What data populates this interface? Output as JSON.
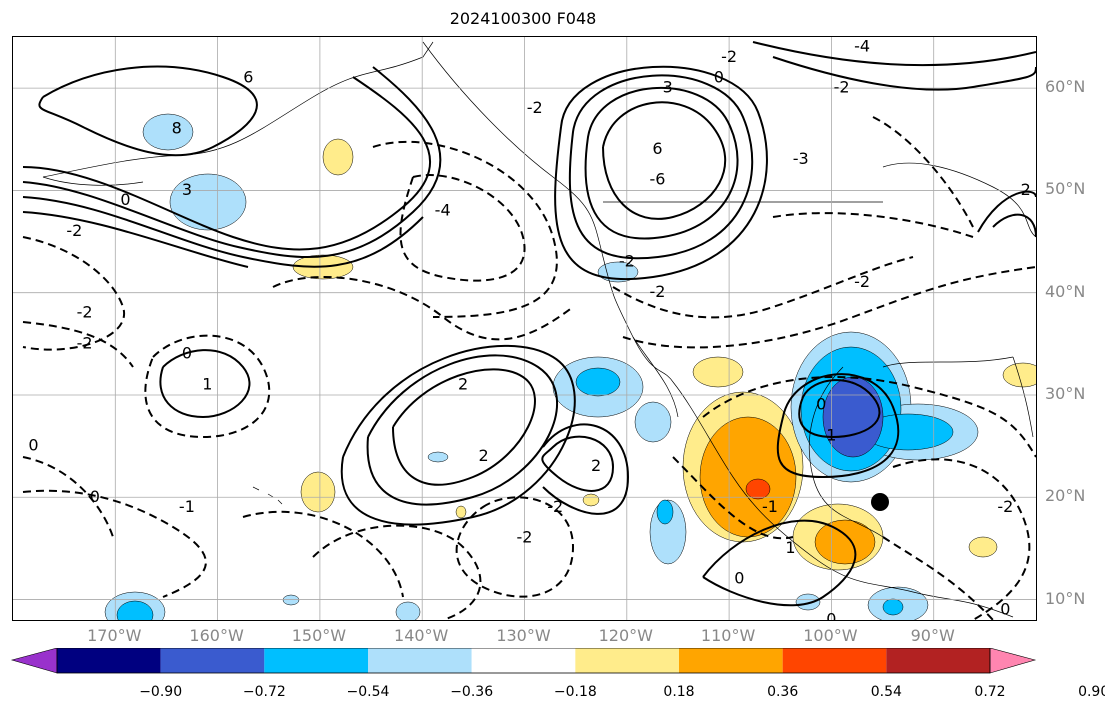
{
  "title": "2024100300 F048",
  "map": {
    "projection": "equirectangular",
    "lon_range": [
      -180,
      -80
    ],
    "lat_range": [
      8,
      65
    ],
    "grid": true,
    "lat_labels": [
      {
        "lat": 60,
        "text": "60°N"
      },
      {
        "lat": 50,
        "text": "50°N"
      },
      {
        "lat": 40,
        "text": "40°N"
      },
      {
        "lat": 30,
        "text": "30°N"
      },
      {
        "lat": 20,
        "text": "20°N"
      },
      {
        "lat": 10,
        "text": "10°N"
      }
    ],
    "lon_labels": [
      {
        "lon": -170,
        "text": "170°W"
      },
      {
        "lon": -160,
        "text": "160°W"
      },
      {
        "lon": -150,
        "text": "150°W"
      },
      {
        "lon": -140,
        "text": "140°W"
      },
      {
        "lon": -130,
        "text": "130°W"
      },
      {
        "lon": -120,
        "text": "120°W"
      },
      {
        "lon": -110,
        "text": "110°W"
      },
      {
        "lon": -100,
        "text": "100°W"
      },
      {
        "lon": -90,
        "text": "90°W"
      }
    ],
    "contour_labels": [
      {
        "text": "6",
        "lon": -157,
        "lat": 61
      },
      {
        "text": "8",
        "lon": -164,
        "lat": 56
      },
      {
        "text": "3",
        "lon": -163,
        "lat": 50
      },
      {
        "text": "0",
        "lon": -169,
        "lat": 49
      },
      {
        "text": "-2",
        "lon": -174,
        "lat": 46
      },
      {
        "text": "-2",
        "lon": -173,
        "lat": 38
      },
      {
        "text": "-2",
        "lon": -173,
        "lat": 35
      },
      {
        "text": "0",
        "lon": -163,
        "lat": 34
      },
      {
        "text": "1",
        "lon": -161,
        "lat": 31
      },
      {
        "text": "0",
        "lon": -178,
        "lat": 25
      },
      {
        "text": "0",
        "lon": -172,
        "lat": 20
      },
      {
        "text": "-1",
        "lon": -163,
        "lat": 19
      },
      {
        "text": "-4",
        "lon": -138,
        "lat": 48
      },
      {
        "text": "2",
        "lon": -136,
        "lat": 31
      },
      {
        "text": "2",
        "lon": -134,
        "lat": 24
      },
      {
        "text": "2",
        "lon": -123,
        "lat": 23
      },
      {
        "text": "-2",
        "lon": -127,
        "lat": 19
      },
      {
        "text": "-2",
        "lon": -130,
        "lat": 16
      },
      {
        "text": "3",
        "lon": -116,
        "lat": 60
      },
      {
        "text": "0",
        "lon": -111,
        "lat": 61
      },
      {
        "text": "6",
        "lon": -117,
        "lat": 54
      },
      {
        "text": "-6",
        "lon": -117,
        "lat": 51
      },
      {
        "text": "-2",
        "lon": -129,
        "lat": 58
      },
      {
        "text": "-2",
        "lon": -110,
        "lat": 63
      },
      {
        "text": "-3",
        "lon": -103,
        "lat": 53
      },
      {
        "text": "-2",
        "lon": -99,
        "lat": 60
      },
      {
        "text": "-4",
        "lon": -97,
        "lat": 64
      },
      {
        "text": "-2",
        "lon": -97,
        "lat": 41
      },
      {
        "text": "-2",
        "lon": -120,
        "lat": 43
      },
      {
        "text": "-2",
        "lon": -117,
        "lat": 40
      },
      {
        "text": "0",
        "lon": -101,
        "lat": 29
      },
      {
        "text": "1",
        "lon": -100,
        "lat": 26
      },
      {
        "text": "-1",
        "lon": -106,
        "lat": 19
      },
      {
        "text": "1",
        "lon": -104,
        "lat": 15
      },
      {
        "text": "0",
        "lon": -109,
        "lat": 12
      },
      {
        "text": "0",
        "lon": -100,
        "lat": 8
      },
      {
        "text": "-2",
        "lon": -83,
        "lat": 19
      },
      {
        "text": "0",
        "lon": -83,
        "lat": 9
      },
      {
        "text": "2",
        "lon": -81,
        "lat": 50
      }
    ],
    "marker": {
      "name": "black-dot",
      "lon": -94.5,
      "lat": 19.5
    }
  },
  "colorbar": {
    "tick_labels": [
      "−0.90",
      "−0.72",
      "−0.54",
      "−0.36",
      "−0.18",
      "0.18",
      "0.36",
      "0.54",
      "0.72",
      "0.90"
    ],
    "colors": [
      "#9932cc",
      "#000080",
      "#3a5bcf",
      "#00bfff",
      "#aee0fb",
      "#ffffff",
      "#ffec8b",
      "#ffa500",
      "#ff4500",
      "#b22222",
      "#ff85b0"
    ]
  },
  "shading_colors": {
    "light_blue": "#aee0fb",
    "blue": "#00bfff",
    "dark_blue": "#3a5bcf",
    "yellow": "#ffec8b",
    "orange": "#ffa500",
    "red": "#ff4500"
  }
}
